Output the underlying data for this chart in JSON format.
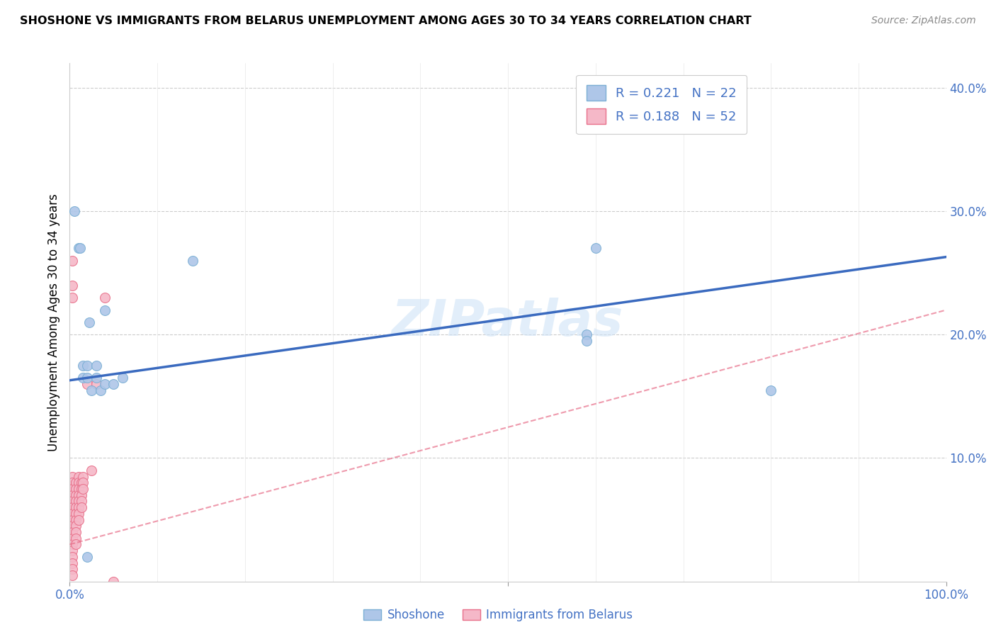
{
  "title": "SHOSHONE VS IMMIGRANTS FROM BELARUS UNEMPLOYMENT AMONG AGES 30 TO 34 YEARS CORRELATION CHART",
  "source": "Source: ZipAtlas.com",
  "ylabel": "Unemployment Among Ages 30 to 34 years",
  "xlim": [
    0,
    1.0
  ],
  "ylim": [
    0,
    0.42
  ],
  "watermark": "ZIPatlas",
  "shoshone_color": "#aec6e8",
  "shoshone_edge": "#7bafd4",
  "belarus_color": "#f5b8c8",
  "belarus_edge": "#e8708a",
  "trend_blue_color": "#3a6abf",
  "trend_pink_color": "#e8708a",
  "shoshone_x": [
    0.005,
    0.01,
    0.012,
    0.015,
    0.015,
    0.02,
    0.02,
    0.022,
    0.025,
    0.03,
    0.03,
    0.035,
    0.04,
    0.04,
    0.05,
    0.06,
    0.14,
    0.59,
    0.59,
    0.6,
    0.8,
    0.02
  ],
  "shoshone_y": [
    0.3,
    0.27,
    0.27,
    0.175,
    0.165,
    0.175,
    0.165,
    0.21,
    0.155,
    0.175,
    0.165,
    0.155,
    0.22,
    0.16,
    0.16,
    0.165,
    0.26,
    0.2,
    0.195,
    0.27,
    0.155,
    0.02
  ],
  "belarus_x": [
    0.003,
    0.003,
    0.003,
    0.003,
    0.003,
    0.003,
    0.003,
    0.003,
    0.003,
    0.003,
    0.003,
    0.003,
    0.003,
    0.003,
    0.003,
    0.003,
    0.003,
    0.003,
    0.003,
    0.003,
    0.007,
    0.007,
    0.007,
    0.007,
    0.007,
    0.007,
    0.007,
    0.007,
    0.007,
    0.007,
    0.007,
    0.01,
    0.01,
    0.01,
    0.01,
    0.01,
    0.01,
    0.01,
    0.01,
    0.013,
    0.013,
    0.013,
    0.013,
    0.013,
    0.015,
    0.015,
    0.015,
    0.02,
    0.025,
    0.03,
    0.04,
    0.05
  ],
  "belarus_y": [
    0.26,
    0.24,
    0.23,
    0.085,
    0.08,
    0.075,
    0.07,
    0.065,
    0.06,
    0.055,
    0.05,
    0.045,
    0.04,
    0.035,
    0.03,
    0.025,
    0.02,
    0.015,
    0.01,
    0.005,
    0.08,
    0.075,
    0.07,
    0.065,
    0.06,
    0.055,
    0.05,
    0.045,
    0.04,
    0.035,
    0.03,
    0.085,
    0.08,
    0.075,
    0.07,
    0.065,
    0.06,
    0.055,
    0.05,
    0.08,
    0.075,
    0.07,
    0.065,
    0.06,
    0.085,
    0.08,
    0.075,
    0.16,
    0.09,
    0.16,
    0.23,
    0.0
  ],
  "shoshone_trend_x": [
    0.0,
    1.0
  ],
  "shoshone_trend_y": [
    0.163,
    0.263
  ],
  "belarus_trend_x": [
    0.0,
    1.0
  ],
  "belarus_trend_y": [
    0.03,
    0.22
  ],
  "marker_size": 100,
  "background_color": "#ffffff",
  "grid_color": "#cccccc"
}
